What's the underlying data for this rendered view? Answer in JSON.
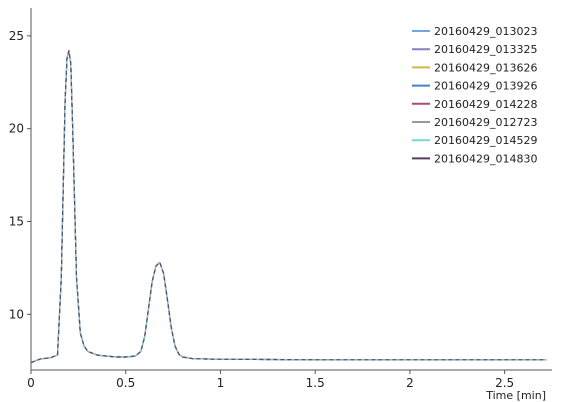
{
  "chart_data": {
    "type": "line",
    "xlabel": "Time [min]",
    "ylabel": "",
    "xlim": [
      0,
      2.75
    ],
    "ylim": [
      7,
      26.5
    ],
    "x_ticks": [
      0,
      0.5,
      1,
      1.5,
      2,
      2.5
    ],
    "x_tick_labels": [
      "0",
      "0.5",
      "1",
      "1.5",
      "2",
      "2.5"
    ],
    "y_ticks": [
      10,
      15,
      20,
      25
    ],
    "y_tick_labels": [
      "10",
      "15",
      "20",
      "25"
    ],
    "grid": false,
    "legend_position": "top-right",
    "x": [
      0,
      0.05,
      0.1,
      0.14,
      0.16,
      0.18,
      0.19,
      0.2,
      0.21,
      0.22,
      0.24,
      0.26,
      0.28,
      0.3,
      0.35,
      0.4,
      0.45,
      0.5,
      0.55,
      0.58,
      0.6,
      0.62,
      0.64,
      0.66,
      0.68,
      0.7,
      0.72,
      0.74,
      0.76,
      0.78,
      0.8,
      0.85,
      0.9,
      1.0,
      1.5,
      2.0,
      2.5,
      2.72
    ],
    "series": [
      {
        "name": "20160429_013023",
        "color": "#6fa8dc",
        "values": [
          7.4,
          7.6,
          7.65,
          7.8,
          12.0,
          21.5,
          23.8,
          24.2,
          23.5,
          20.0,
          12.0,
          9.0,
          8.3,
          8.0,
          7.8,
          7.75,
          7.7,
          7.7,
          7.75,
          8.0,
          8.8,
          10.3,
          11.8,
          12.6,
          12.8,
          12.2,
          10.8,
          9.3,
          8.3,
          7.85,
          7.7,
          7.62,
          7.6,
          7.58,
          7.55,
          7.55,
          7.55,
          7.55
        ]
      },
      {
        "name": "20160429_013325",
        "color": "#8e7cc3",
        "values": [
          7.4,
          7.6,
          7.65,
          7.8,
          12.0,
          21.5,
          23.8,
          24.2,
          23.5,
          20.0,
          12.0,
          9.0,
          8.3,
          8.0,
          7.8,
          7.75,
          7.7,
          7.7,
          7.75,
          8.0,
          8.8,
          10.3,
          11.8,
          12.6,
          12.8,
          12.2,
          10.8,
          9.3,
          8.3,
          7.85,
          7.7,
          7.62,
          7.6,
          7.58,
          7.55,
          7.55,
          7.55,
          7.55
        ]
      },
      {
        "name": "20160429_013626",
        "color": "#d4b842",
        "values": [
          7.4,
          7.6,
          7.65,
          7.8,
          12.0,
          21.5,
          23.8,
          24.2,
          23.5,
          20.0,
          12.0,
          9.0,
          8.3,
          8.0,
          7.8,
          7.75,
          7.7,
          7.7,
          7.75,
          8.0,
          8.8,
          10.3,
          11.8,
          12.6,
          12.8,
          12.2,
          10.8,
          9.3,
          8.3,
          7.85,
          7.7,
          7.62,
          7.6,
          7.58,
          7.55,
          7.55,
          7.55,
          7.55
        ]
      },
      {
        "name": "20160429_013926",
        "color": "#3d85c6",
        "values": [
          7.4,
          7.6,
          7.65,
          7.8,
          12.0,
          21.5,
          23.8,
          24.2,
          23.5,
          20.0,
          12.0,
          9.0,
          8.3,
          8.0,
          7.8,
          7.75,
          7.7,
          7.7,
          7.75,
          8.0,
          8.8,
          10.3,
          11.8,
          12.6,
          12.8,
          12.2,
          10.8,
          9.3,
          8.3,
          7.85,
          7.7,
          7.62,
          7.6,
          7.58,
          7.55,
          7.55,
          7.55,
          7.55
        ]
      },
      {
        "name": "20160429_014228",
        "color": "#a64d79",
        "values": [
          7.4,
          7.6,
          7.65,
          7.8,
          12.0,
          21.5,
          23.8,
          24.2,
          23.5,
          20.0,
          12.0,
          9.0,
          8.3,
          8.0,
          7.8,
          7.75,
          7.7,
          7.7,
          7.75,
          8.0,
          8.8,
          10.3,
          11.8,
          12.6,
          12.8,
          12.2,
          10.8,
          9.3,
          8.3,
          7.85,
          7.7,
          7.62,
          7.6,
          7.58,
          7.55,
          7.55,
          7.55,
          7.55
        ]
      },
      {
        "name": "20160429_012723",
        "color": "#999999",
        "values": [
          7.4,
          7.6,
          7.65,
          7.8,
          12.0,
          21.5,
          23.8,
          24.2,
          23.5,
          20.0,
          12.0,
          9.0,
          8.3,
          8.0,
          7.8,
          7.75,
          7.7,
          7.7,
          7.75,
          8.0,
          8.8,
          10.3,
          11.8,
          12.6,
          12.8,
          12.2,
          10.8,
          9.3,
          8.3,
          7.85,
          7.7,
          7.62,
          7.6,
          7.58,
          7.55,
          7.55,
          7.55,
          7.55
        ]
      },
      {
        "name": "20160429_014529",
        "color": "#76d7d7",
        "values": [
          7.4,
          7.6,
          7.65,
          7.8,
          12.0,
          21.5,
          23.8,
          24.2,
          23.5,
          20.0,
          12.0,
          9.0,
          8.3,
          8.0,
          7.8,
          7.75,
          7.7,
          7.7,
          7.75,
          8.0,
          8.8,
          10.3,
          11.8,
          12.6,
          12.8,
          12.2,
          10.8,
          9.3,
          8.3,
          7.85,
          7.7,
          7.62,
          7.6,
          7.58,
          7.55,
          7.55,
          7.55,
          7.55
        ]
      },
      {
        "name": "20160429_014830",
        "color": "#5b3b5b",
        "values": [
          7.4,
          7.6,
          7.65,
          7.8,
          12.0,
          21.5,
          23.8,
          24.2,
          23.5,
          20.0,
          12.0,
          9.0,
          8.3,
          8.0,
          7.8,
          7.75,
          7.7,
          7.7,
          7.75,
          8.0,
          8.8,
          10.3,
          11.8,
          12.6,
          12.8,
          12.2,
          10.8,
          9.3,
          8.3,
          7.85,
          7.7,
          7.62,
          7.6,
          7.58,
          7.55,
          7.55,
          7.55,
          7.55
        ]
      }
    ]
  }
}
